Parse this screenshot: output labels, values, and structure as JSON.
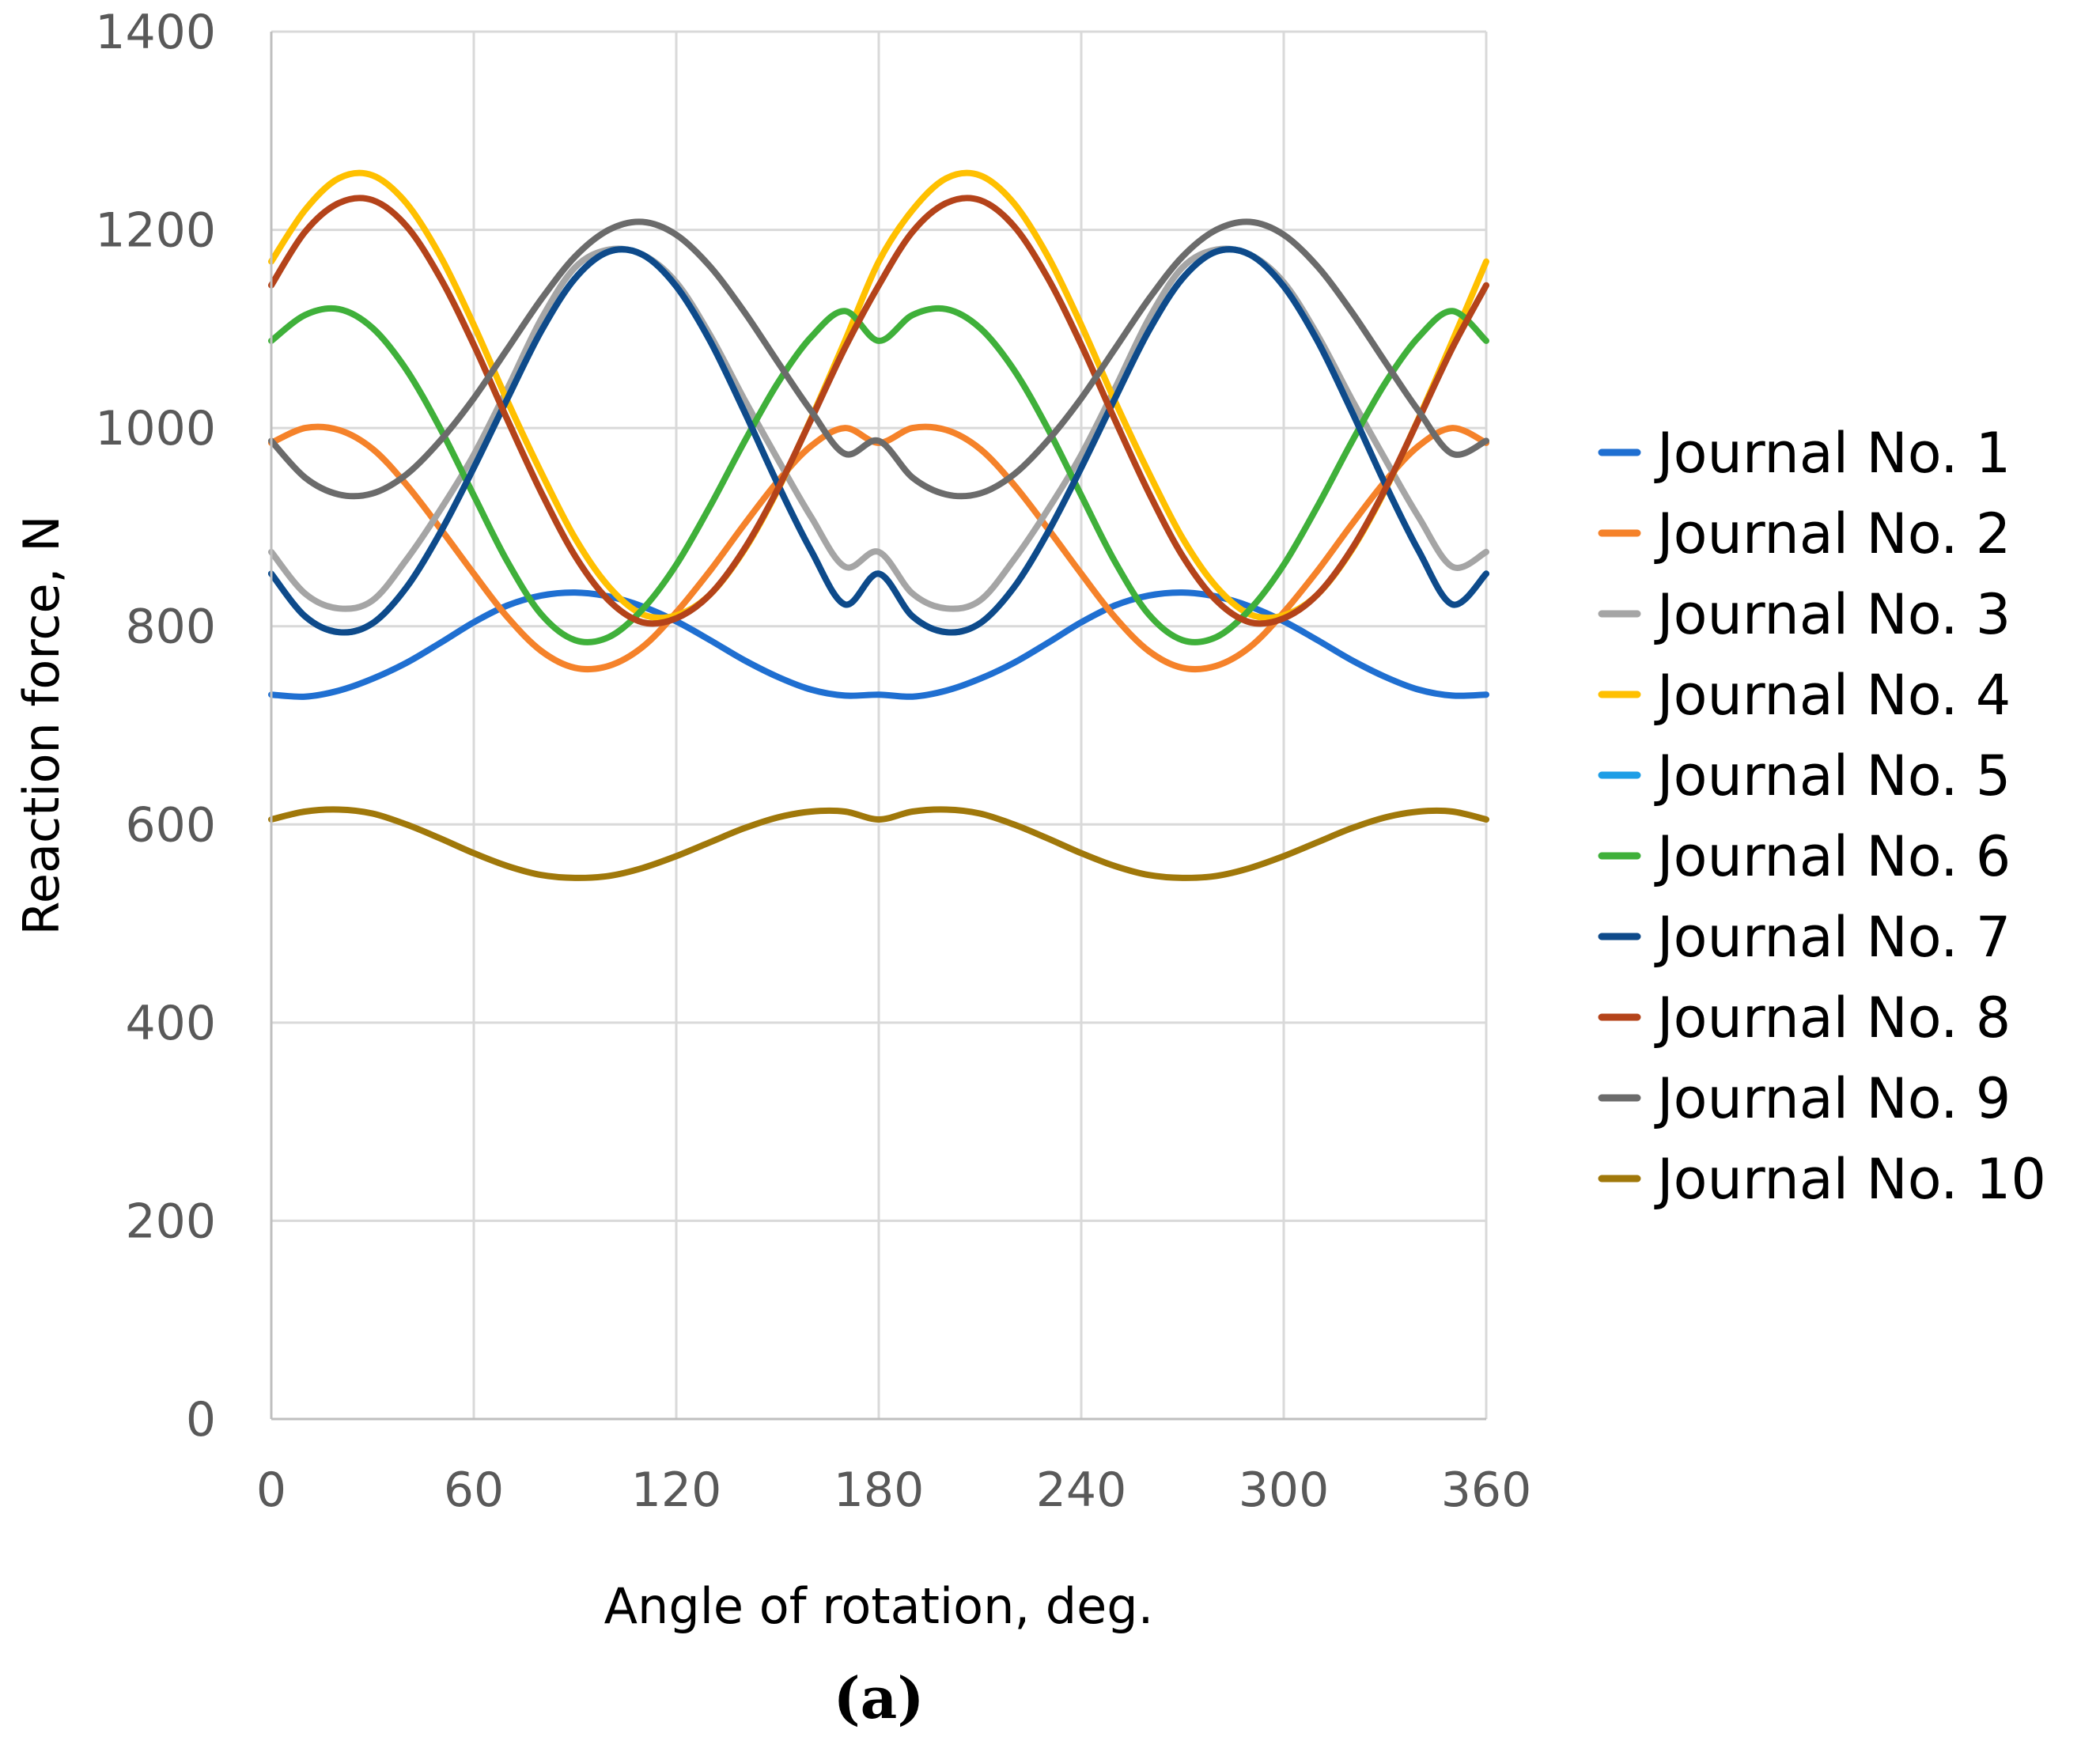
{
  "chart_data": {
    "type": "line",
    "title": "",
    "xlabel": "Angle of rotation, deg.",
    "ylabel": "Reaction force, N",
    "caption": "(a)",
    "xlim": [
      0,
      360
    ],
    "ylim": [
      0,
      1400
    ],
    "xticks": [
      "0",
      "60",
      "120",
      "180",
      "240",
      "300",
      "360"
    ],
    "yticks": [
      "0",
      "200",
      "400",
      "600",
      "800",
      "1000",
      "1200",
      "1400"
    ],
    "grid": true,
    "legend_position": "right",
    "x": [
      0,
      10,
      20,
      30,
      40,
      50,
      60,
      70,
      80,
      90,
      100,
      110,
      120,
      130,
      140,
      150,
      160,
      170,
      180,
      190,
      200,
      210,
      220,
      230,
      240,
      250,
      260,
      270,
      280,
      290,
      300,
      310,
      320,
      330,
      340,
      350,
      360
    ],
    "series": [
      {
        "name": "Journal No. 1",
        "color": "#1f6fd1",
        "values": [
          731,
          729,
          735,
          747,
          763,
          783,
          804,
          821,
          831,
          834,
          830,
          820,
          805,
          786,
          766,
          749,
          736,
          730,
          731,
          729,
          735,
          747,
          763,
          783,
          804,
          821,
          831,
          834,
          830,
          820,
          805,
          786,
          766,
          749,
          736,
          730,
          731
        ]
      },
      {
        "name": "Journal No. 2",
        "color": "#f5822a",
        "values": [
          985,
          1000,
          998,
          979,
          943,
          899,
          853,
          809,
          775,
          758,
          760,
          779,
          814,
          856,
          902,
          946,
          982,
          1000,
          985,
          1000,
          998,
          979,
          943,
          899,
          853,
          809,
          775,
          758,
          760,
          779,
          814,
          856,
          902,
          946,
          982,
          1000,
          985
        ]
      },
      {
        "name": "Journal No. 3",
        "color": "#a5a5a5",
        "values": [
          875,
          833,
          818,
          826,
          867,
          917,
          973,
          1040,
          1110,
          1162,
          1180,
          1175,
          1147,
          1094,
          1030,
          969,
          910,
          860,
          875,
          833,
          818,
          826,
          867,
          917,
          973,
          1040,
          1110,
          1162,
          1180,
          1175,
          1147,
          1094,
          1030,
          969,
          910,
          860,
          875
        ]
      },
      {
        "name": "Journal No. 4",
        "color": "#ffc000",
        "values": [
          1168,
          1220,
          1252,
          1255,
          1227,
          1174,
          1104,
          1027,
          955,
          889,
          840,
          812,
          811,
          832,
          876,
          937,
          1010,
          1088,
          1168,
          1220,
          1252,
          1255,
          1227,
          1174,
          1104,
          1027,
          955,
          889,
          840,
          812,
          811,
          832,
          876,
          937,
          1010,
          1088,
          1168
        ]
      },
      {
        "name": "Journal No. 5",
        "color": "#1e9ee6",
        "values": [
          853,
          810,
          794,
          803,
          839,
          894,
          960,
          1030,
          1098,
          1151,
          1178,
          1175,
          1143,
          1088,
          1018,
          944,
          876,
          822,
          853,
          810,
          794,
          803,
          839,
          894,
          960,
          1030,
          1098,
          1151,
          1178,
          1175,
          1143,
          1088,
          1018,
          944,
          876,
          822,
          853
        ]
      },
      {
        "name": "Journal No. 6",
        "color": "#3fb03a",
        "values": [
          1088,
          1114,
          1120,
          1101,
          1059,
          1000,
          932,
          865,
          812,
          786,
          789,
          817,
          862,
          921,
          985,
          1045,
          1092,
          1118,
          1088,
          1114,
          1120,
          1101,
          1059,
          1000,
          932,
          865,
          812,
          786,
          789,
          817,
          862,
          921,
          985,
          1045,
          1092,
          1118,
          1088
        ]
      },
      {
        "name": "Journal No. 7",
        "color": "#0e4a8a",
        "values": [
          853,
          810,
          794,
          803,
          839,
          894,
          960,
          1030,
          1098,
          1151,
          1178,
          1175,
          1143,
          1088,
          1018,
          944,
          876,
          822,
          853,
          810,
          794,
          803,
          839,
          894,
          960,
          1030,
          1098,
          1151,
          1178,
          1175,
          1143,
          1088,
          1018,
          944,
          876,
          822,
          853
        ]
      },
      {
        "name": "Journal No. 8",
        "color": "#b4431a",
        "values": [
          1144,
          1198,
          1227,
          1230,
          1204,
          1152,
          1084,
          1008,
          935,
          871,
          826,
          804,
          808,
          832,
          877,
          938,
          1009,
          1081,
          1144,
          1198,
          1227,
          1230,
          1204,
          1152,
          1084,
          1008,
          935,
          871,
          826,
          804,
          808,
          832,
          877,
          938,
          1009,
          1081,
          1144
        ]
      },
      {
        "name": "Journal No. 9",
        "color": "#6b6b6b",
        "values": [
          987,
          950,
          933,
          934,
          953,
          987,
          1030,
          1080,
          1130,
          1173,
          1200,
          1208,
          1195,
          1163,
          1118,
          1067,
          1017,
          974,
          987,
          950,
          933,
          934,
          953,
          987,
          1030,
          1080,
          1130,
          1173,
          1200,
          1208,
          1195,
          1163,
          1118,
          1067,
          1017,
          974,
          987
        ]
      },
      {
        "name": "Journal No. 10",
        "color": "#a0780a",
        "values": [
          605,
          613,
          615,
          611,
          600,
          586,
          571,
          558,
          549,
          546,
          548,
          556,
          568,
          582,
          596,
          607,
          613,
          613,
          605,
          613,
          615,
          611,
          600,
          586,
          571,
          558,
          549,
          546,
          548,
          556,
          568,
          582,
          596,
          607,
          613,
          613,
          605
        ]
      }
    ]
  }
}
